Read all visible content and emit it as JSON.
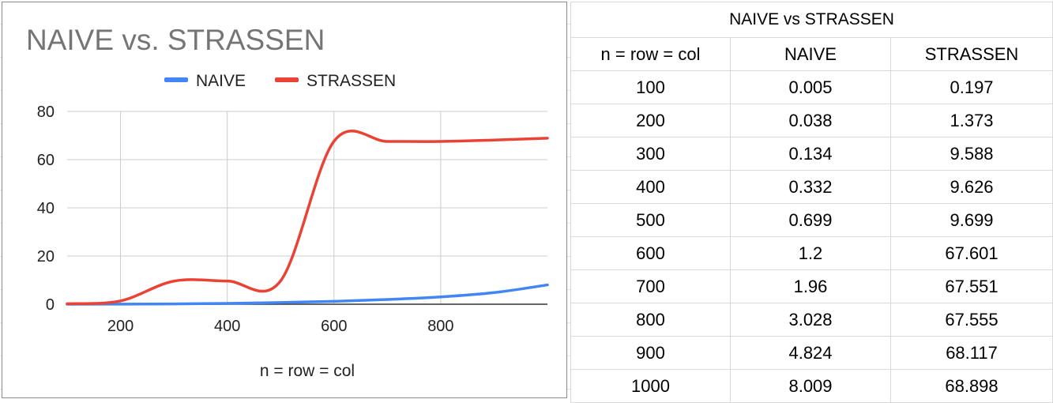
{
  "chart_data": {
    "type": "line",
    "title": "NAIVE vs. STRASSEN",
    "xlabel": "n = row = col",
    "ylabel": "",
    "x": [
      100,
      200,
      300,
      400,
      500,
      600,
      700,
      800,
      900,
      1000
    ],
    "xlim": [
      100,
      1000
    ],
    "ylim": [
      0,
      80
    ],
    "xticks": [
      200,
      400,
      600,
      800
    ],
    "yticks": [
      0,
      20,
      40,
      60,
      80
    ],
    "grid": true,
    "legend": "top-center",
    "series": [
      {
        "name": "NAIVE",
        "color": "#4285f4",
        "values": [
          0.005,
          0.038,
          0.134,
          0.332,
          0.699,
          1.2,
          1.96,
          3.028,
          4.824,
          8.009
        ]
      },
      {
        "name": "STRASSEN",
        "color": "#ea4335",
        "values": [
          0.197,
          1.373,
          9.588,
          9.626,
          9.699,
          67.601,
          67.551,
          67.555,
          68.117,
          68.898
        ]
      }
    ]
  },
  "table": {
    "title": "NAIVE vs STRASSEN",
    "headers": [
      "n = row = col",
      "NAIVE",
      "STRASSEN"
    ],
    "rows": [
      [
        "100",
        "0.005",
        "0.197"
      ],
      [
        "200",
        "0.038",
        "1.373"
      ],
      [
        "300",
        "0.134",
        "9.588"
      ],
      [
        "400",
        "0.332",
        "9.626"
      ],
      [
        "500",
        "0.699",
        "9.699"
      ],
      [
        "600",
        "1.2",
        "67.601"
      ],
      [
        "700",
        "1.96",
        "67.551"
      ],
      [
        "800",
        "3.028",
        "67.555"
      ],
      [
        "900",
        "4.824",
        "68.117"
      ],
      [
        "1000",
        "8.009",
        "68.898"
      ]
    ]
  }
}
